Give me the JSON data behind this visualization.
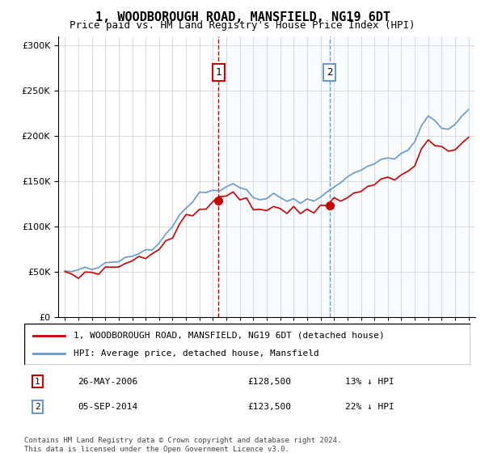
{
  "title": "1, WOODBOROUGH ROAD, MANSFIELD, NG19 6DT",
  "subtitle": "Price paid vs. HM Land Registry's House Price Index (HPI)",
  "legend_line1": "1, WOODBOROUGH ROAD, MANSFIELD, NG19 6DT (detached house)",
  "legend_line2": "HPI: Average price, detached house, Mansfield",
  "transaction1": {
    "label": "1",
    "date": "26-MAY-2006",
    "price": "£128,500",
    "hpi_diff": "13% ↓ HPI"
  },
  "transaction2": {
    "label": "2",
    "date": "05-SEP-2014",
    "price": "£123,500",
    "hpi_diff": "22% ↓ HPI"
  },
  "footer": "Contains HM Land Registry data © Crown copyright and database right 2024.\nThis data is licensed under the Open Government Licence v3.0.",
  "red_color": "#cc0000",
  "blue_color": "#6699cc",
  "fill_color": "#ddeeff",
  "vline_color": "#cc0000",
  "marker1_x": 2006.4,
  "marker2_x": 2014.67,
  "ylim_max": 310000,
  "ylim_min": 0
}
